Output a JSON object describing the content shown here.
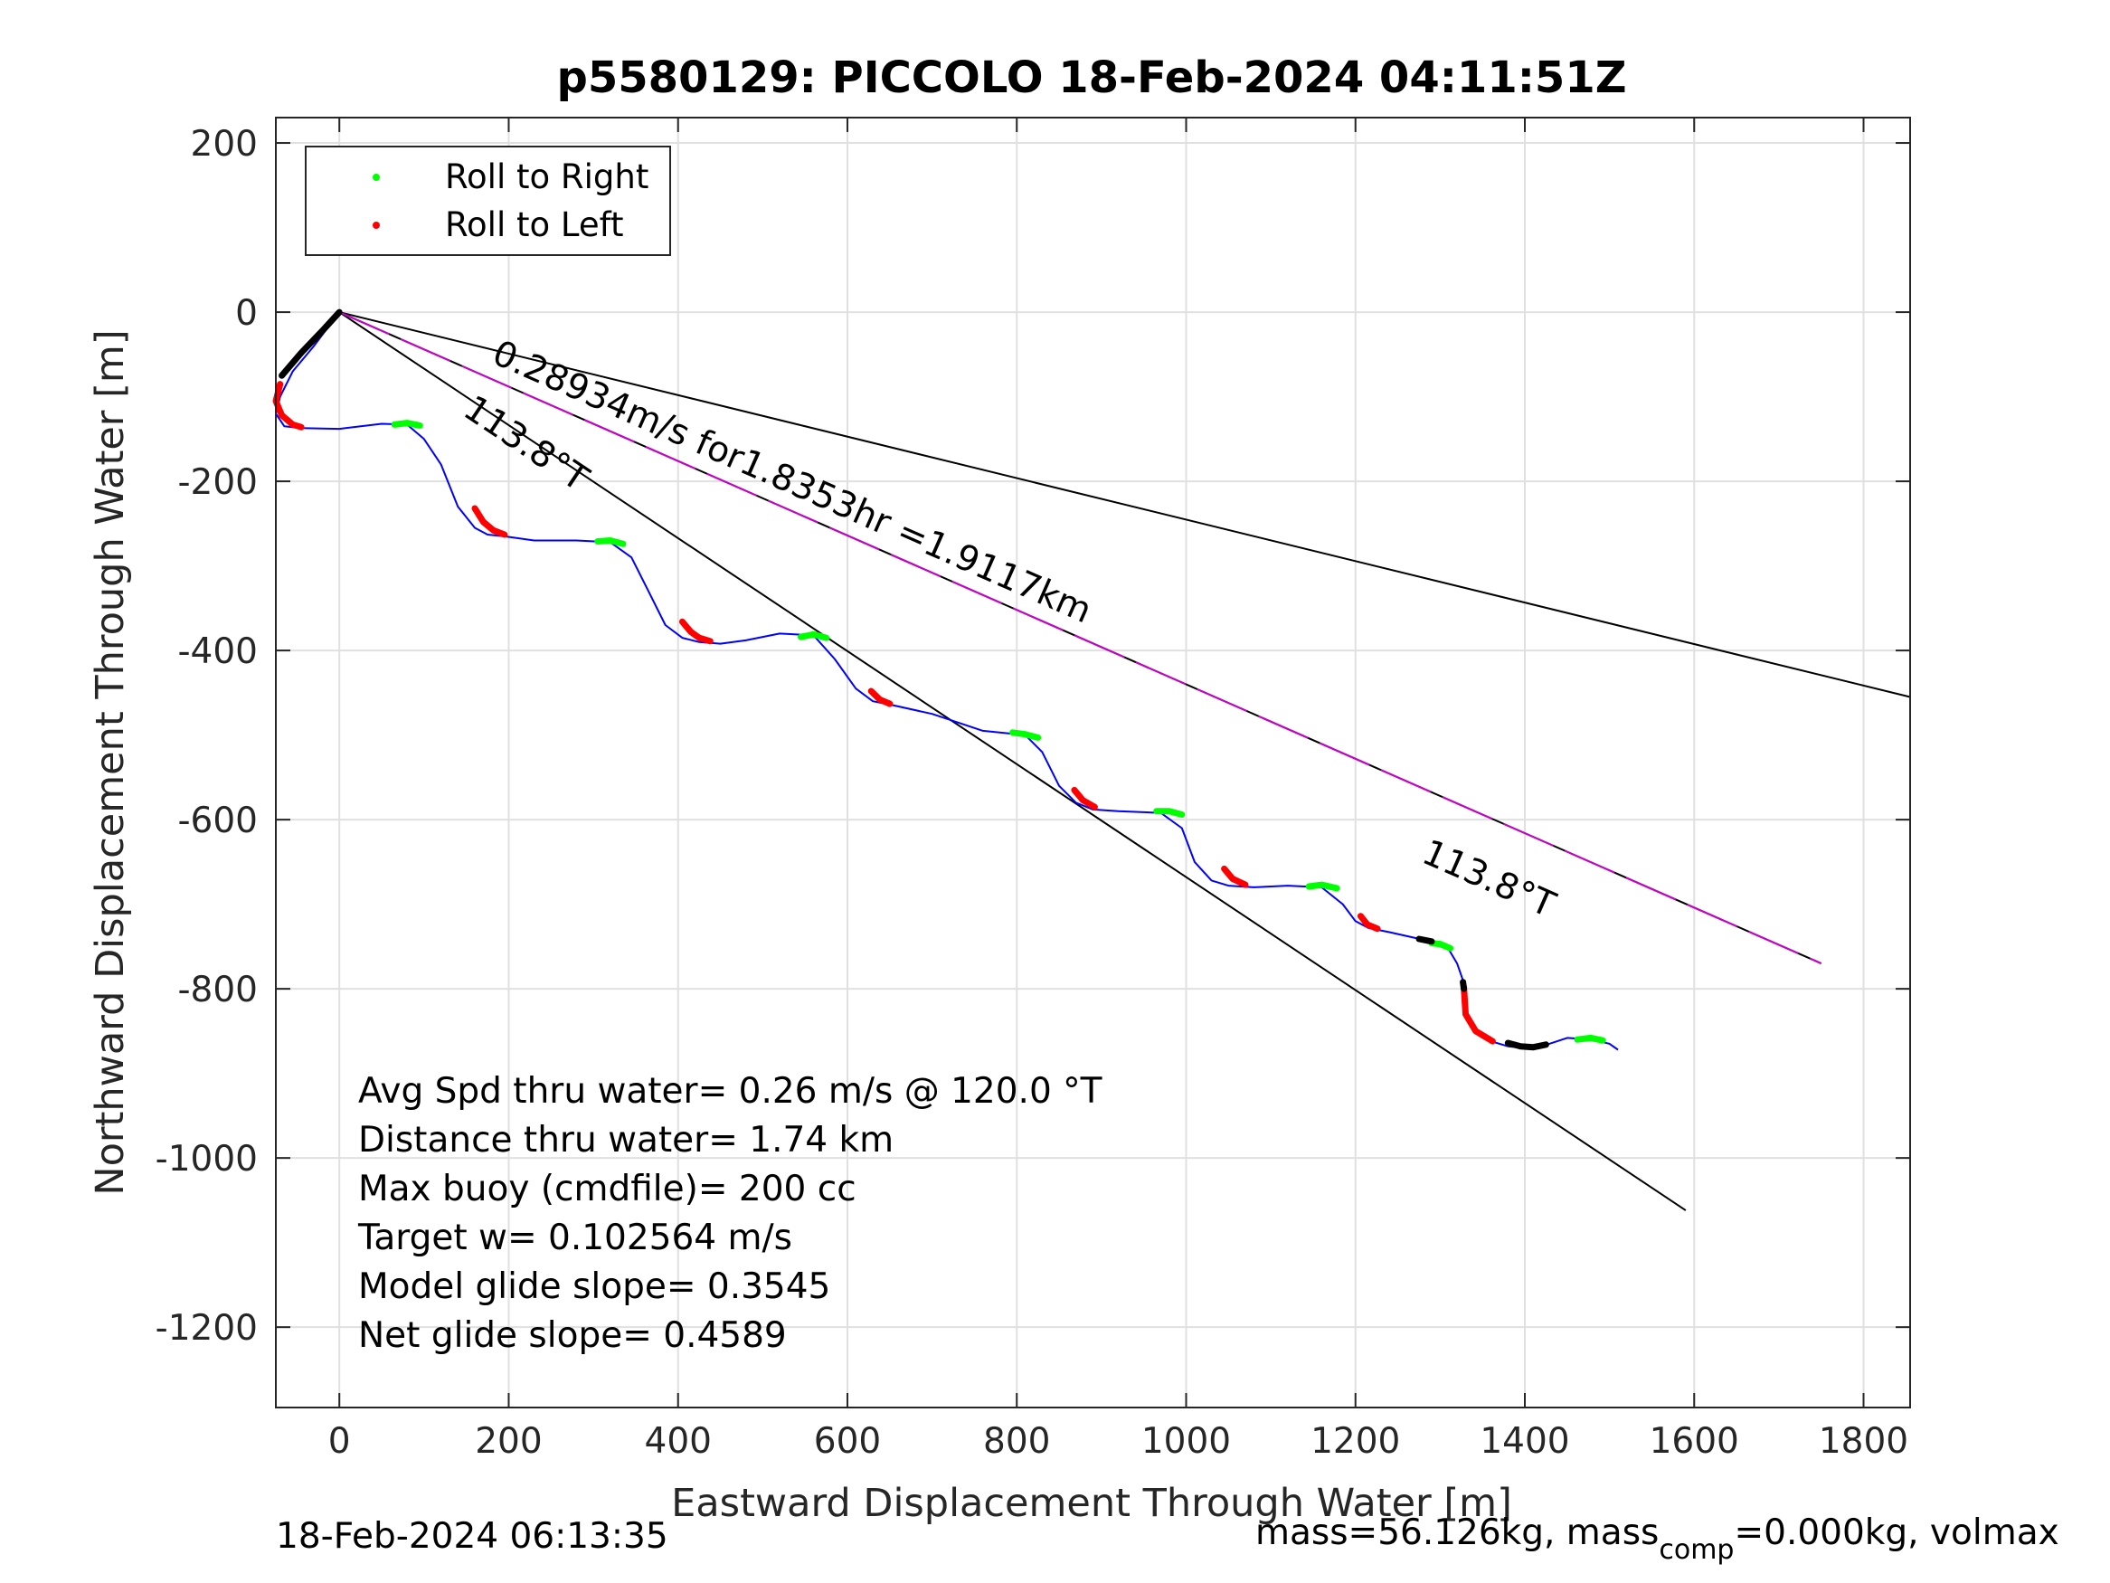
{
  "chart_data": {
    "type": "line",
    "title": "p5580129: PICCOLO 18-Feb-2024 04:11:51Z",
    "xlabel": "Eastward Displacement Through Water [m]",
    "ylabel": "Northward Displacement Through Water [m]",
    "xlim": [
      -75,
      1855
    ],
    "ylim": [
      -1295,
      230
    ],
    "xticks": [
      0,
      200,
      400,
      600,
      800,
      1000,
      1200,
      1400,
      1600,
      1800
    ],
    "yticks": [
      200,
      0,
      -200,
      -400,
      -600,
      -800,
      -1000,
      -1200
    ],
    "xtick_labels": [
      "0",
      "200",
      "400",
      "600",
      "800",
      "1000",
      "1200",
      "1400",
      "1600",
      "1800"
    ],
    "ytick_labels": [
      "200",
      "0",
      "-200",
      "-400",
      "-600",
      "-800",
      "-1000",
      "-1200"
    ],
    "grid": true,
    "legend_position": "top-left",
    "legend": [
      {
        "label": "Roll to Right",
        "color": "#00ff00"
      },
      {
        "label": "Roll to Left",
        "color": "#ff0000"
      }
    ],
    "colors": {
      "track": "#0000ff",
      "heading_lines": "#000000",
      "vector_line": "#cc00cc",
      "roll_right": "#00ff00",
      "roll_left": "#ff0000",
      "surface": "#000000"
    },
    "track": {
      "x": [
        0,
        -30,
        -55,
        -70,
        -75,
        -65,
        -45,
        0,
        50,
        80,
        100,
        120,
        140,
        160,
        175,
        195,
        230,
        280,
        320,
        345,
        365,
        385,
        405,
        425,
        450,
        480,
        520,
        560,
        585,
        610,
        630,
        655,
        700,
        760,
        810,
        830,
        850,
        870,
        890,
        920,
        970,
        995,
        1010,
        1030,
        1050,
        1080,
        1120,
        1160,
        1185,
        1200,
        1215,
        1240,
        1280,
        1310,
        1320,
        1327,
        1330,
        1340,
        1360,
        1380,
        1400,
        1420,
        1450,
        1480,
        1500,
        1510
      ],
      "y": [
        0,
        -40,
        -70,
        -100,
        -120,
        -135,
        -137,
        -138,
        -132,
        -133,
        -150,
        -180,
        -230,
        -255,
        -263,
        -265,
        -270,
        -270,
        -272,
        -290,
        -330,
        -370,
        -385,
        -390,
        -392,
        -388,
        -380,
        -382,
        -410,
        -445,
        -460,
        -465,
        -475,
        -495,
        -500,
        -520,
        -560,
        -580,
        -588,
        -590,
        -592,
        -610,
        -650,
        -672,
        -678,
        -680,
        -678,
        -680,
        -700,
        -720,
        -728,
        -733,
        -742,
        -753,
        -770,
        -790,
        -830,
        -850,
        -862,
        -868,
        -870,
        -868,
        -858,
        -860,
        -865,
        -872
      ]
    },
    "roll_right_segments": [
      {
        "x": [
          65,
          80,
          95
        ],
        "y": [
          -133,
          -131,
          -134
        ]
      },
      {
        "x": [
          305,
          320,
          335
        ],
        "y": [
          -271,
          -270,
          -274
        ]
      },
      {
        "x": [
          545,
          560,
          575
        ],
        "y": [
          -384,
          -381,
          -385
        ]
      },
      {
        "x": [
          795,
          810,
          825
        ],
        "y": [
          -497,
          -499,
          -503
        ]
      },
      {
        "x": [
          965,
          980,
          995
        ],
        "y": [
          -590,
          -590,
          -594
        ]
      },
      {
        "x": [
          1145,
          1160,
          1178
        ],
        "y": [
          -679,
          -677,
          -681
        ]
      },
      {
        "x": [
          1290,
          1300,
          1312
        ],
        "y": [
          -746,
          -747,
          -752
        ]
      },
      {
        "x": [
          1462,
          1478,
          1492
        ],
        "y": [
          -860,
          -858,
          -861
        ]
      }
    ],
    "roll_left_segments": [
      {
        "x": [
          -70,
          -75,
          -68,
          -55,
          -45
        ],
        "y": [
          -85,
          -105,
          -122,
          -133,
          -136
        ]
      },
      {
        "x": [
          160,
          170,
          182,
          195
        ],
        "y": [
          -232,
          -248,
          -258,
          -263
        ]
      },
      {
        "x": [
          405,
          415,
          425,
          438
        ],
        "y": [
          -366,
          -378,
          -385,
          -389
        ]
      },
      {
        "x": [
          628,
          638,
          650
        ],
        "y": [
          -448,
          -458,
          -463
        ]
      },
      {
        "x": [
          868,
          878,
          892
        ],
        "y": [
          -565,
          -577,
          -585
        ]
      },
      {
        "x": [
          1045,
          1055,
          1070
        ],
        "y": [
          -658,
          -670,
          -677
        ]
      },
      {
        "x": [
          1206,
          1214,
          1226
        ],
        "y": [
          -714,
          -724,
          -729
        ]
      },
      {
        "x": [
          1328,
          1330,
          1342,
          1362
        ],
        "y": [
          -798,
          -830,
          -850,
          -862
        ]
      }
    ],
    "surface_segments": [
      {
        "x": [
          0,
          -20,
          -45,
          -68
        ],
        "y": [
          0,
          -22,
          -48,
          -75
        ]
      },
      {
        "x": [
          1275,
          1290
        ],
        "y": [
          -741,
          -744
        ]
      },
      {
        "x": [
          1327,
          1328
        ],
        "y": [
          -792,
          -800
        ]
      },
      {
        "x": [
          1380,
          1395,
          1410,
          1425
        ],
        "y": [
          -864,
          -868,
          -869,
          -866
        ]
      }
    ],
    "heading_lines": [
      {
        "x": [
          0,
          1855
        ],
        "y": [
          0,
          -455
        ]
      },
      {
        "x": [
          0,
          1590
        ],
        "y": [
          0,
          -1062
        ]
      }
    ],
    "vector_line": {
      "x": [
        0,
        1750
      ],
      "y": [
        0,
        -770
      ]
    },
    "annotations": {
      "vector_label": "0.28934m/s for1.8353hr =1.9117km",
      "heading_label_upper": "113.8°T",
      "heading_label_lower": "113.8°T",
      "stats": [
        "Avg Spd thru water=  0.26 m/s @ 120.0 °T",
        "Distance thru water=  1.74 km",
        "Max buoy (cmdfile)= 200 cc",
        "Target w= 0.102564 m/s",
        "Model glide slope= 0.3545",
        "Net glide slope= 0.4589"
      ]
    }
  },
  "footer": {
    "timestamp": "18-Feb-2024 06:13:35",
    "mass_prefix": "mass=56.126kg, mass",
    "mass_sub": "comp",
    "mass_suffix": "=0.000kg, volmax"
  }
}
